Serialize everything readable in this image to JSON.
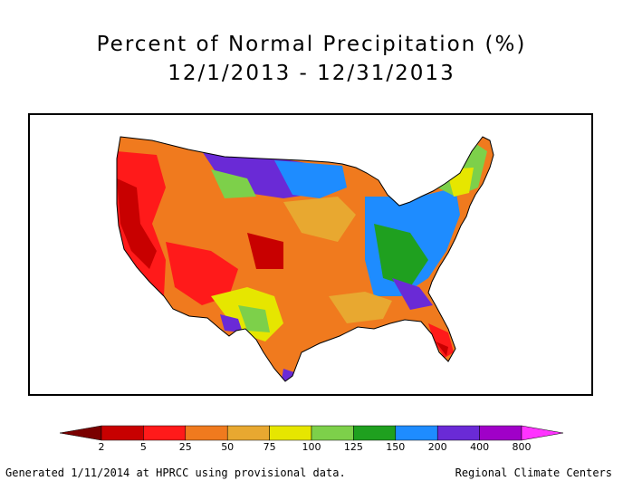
{
  "title": {
    "line1": "Percent of Normal Precipitation (%)",
    "line2": "12/1/2013 - 12/31/2013"
  },
  "legend": {
    "labels": [
      "2",
      "5",
      "25",
      "50",
      "75",
      "100",
      "125",
      "150",
      "200",
      "400",
      "800"
    ],
    "colors": [
      "#7a0000",
      "#c80000",
      "#ff1a1a",
      "#f07a1e",
      "#e8a830",
      "#e6e600",
      "#7dd04a",
      "#1fa01f",
      "#1e8cff",
      "#6a2ad6",
      "#a000c8",
      "#ff33ff"
    ]
  },
  "footer": {
    "left": "Generated 1/11/2014 at HPRCC using provisional data.",
    "right": "Regional Climate Centers"
  }
}
